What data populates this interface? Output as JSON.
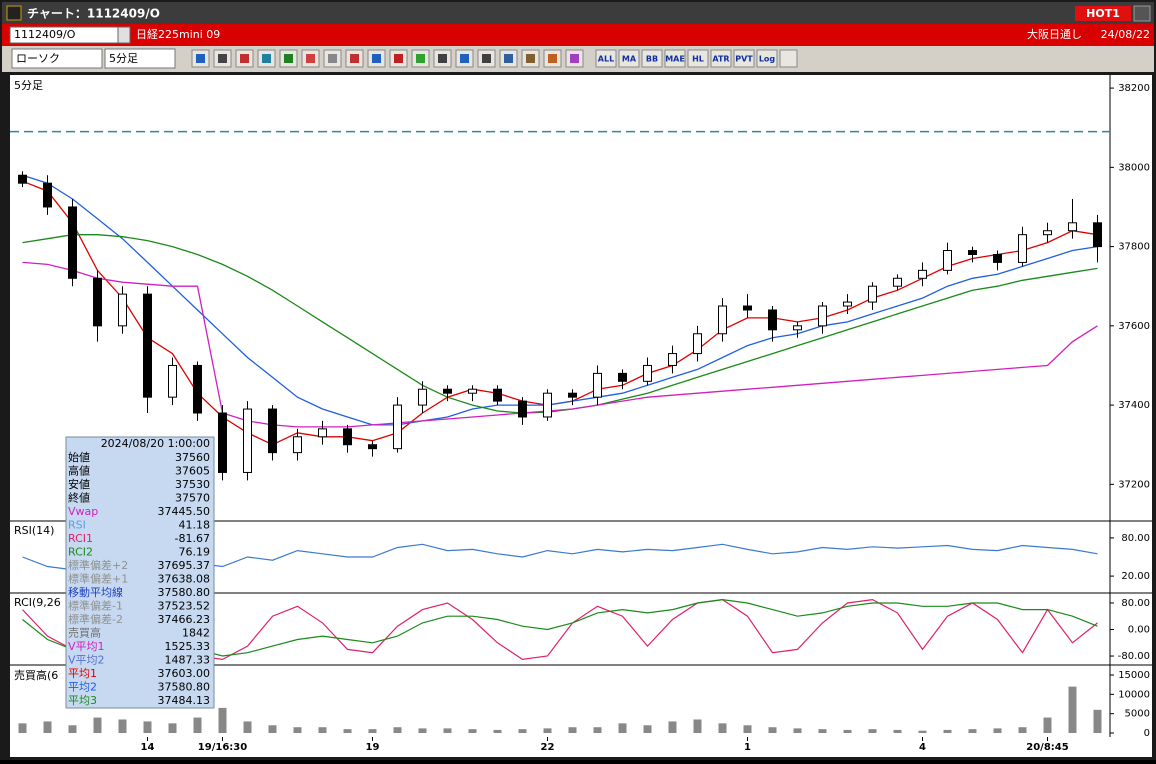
{
  "window": {
    "title": "チャート：1112409/O",
    "hot": "HOT1",
    "symbol": "1112409/O",
    "instrument": "日経225mini 09",
    "session": "大阪日通し",
    "date": "24/08/22"
  },
  "toolbar": {
    "chart_type": "ローソク",
    "interval": "5分足",
    "labels": [
      "ALL",
      "MA",
      "BB",
      "MAE",
      "HL",
      "ATR",
      "PVT",
      "Log"
    ]
  },
  "chart_data": {
    "type": "candlestick",
    "panel_label": "5分足",
    "open": [
      37980,
      37960,
      37900,
      37720,
      37600,
      37680,
      37420,
      37500,
      37380,
      37230,
      37390,
      37280,
      37320,
      37340,
      37300,
      37290,
      37400,
      37440,
      37430,
      37440,
      37410,
      37370,
      37430,
      37420,
      37480,
      37460,
      37500,
      37530,
      37580,
      37650,
      37640,
      37590,
      37600,
      37650,
      37660,
      37700,
      37720,
      37740,
      37790,
      37780,
      37760,
      37830,
      37840,
      37860
    ],
    "high": [
      37990,
      37980,
      37920,
      37740,
      37700,
      37700,
      37520,
      37510,
      37400,
      37410,
      37400,
      37340,
      37360,
      37350,
      37310,
      37420,
      37460,
      37450,
      37450,
      37450,
      37420,
      37440,
      37440,
      37500,
      37490,
      37520,
      37550,
      37600,
      37670,
      37680,
      37650,
      37610,
      37660,
      37680,
      37710,
      37730,
      37760,
      37810,
      37800,
      37790,
      37850,
      37860,
      37920,
      37880
    ],
    "low": [
      37950,
      37880,
      37700,
      37560,
      37580,
      37380,
      37400,
      37360,
      37210,
      37210,
      37260,
      37260,
      37300,
      37280,
      37270,
      37280,
      37380,
      37410,
      37410,
      37400,
      37350,
      37360,
      37400,
      37400,
      37440,
      37450,
      37480,
      37510,
      37560,
      37620,
      37560,
      37570,
      37580,
      37630,
      37640,
      37690,
      37700,
      37730,
      37760,
      37740,
      37750,
      37810,
      37820,
      37760
    ],
    "close": [
      37960,
      37900,
      37720,
      37600,
      37680,
      37420,
      37500,
      37380,
      37230,
      37390,
      37280,
      37320,
      37340,
      37300,
      37290,
      37400,
      37440,
      37430,
      37440,
      37410,
      37370,
      37430,
      37420,
      37480,
      37460,
      37500,
      37530,
      37580,
      37650,
      37640,
      37590,
      37600,
      37650,
      37660,
      37700,
      37720,
      37740,
      37790,
      37780,
      37760,
      37830,
      37840,
      37860,
      37800
    ],
    "candle_up_color": "#ffffff",
    "candle_down_color": "#000000",
    "series": [
      {
        "color": "#e00000",
        "values": [
          37965,
          37940,
          37860,
          37740,
          37670,
          37570,
          37530,
          37430,
          37370,
          37330,
          37300,
          37330,
          37320,
          37320,
          37310,
          37330,
          37380,
          37420,
          37440,
          37430,
          37410,
          37400,
          37410,
          37440,
          37450,
          37480,
          37500,
          37540,
          37590,
          37620,
          37620,
          37610,
          37620,
          37640,
          37670,
          37690,
          37720,
          37750,
          37770,
          37780,
          37790,
          37810,
          37840,
          37830
        ]
      },
      {
        "color": "#1f5fe0",
        "values": [
          37980,
          37960,
          37920,
          37870,
          37820,
          37760,
          37700,
          37640,
          37580,
          37520,
          37470,
          37420,
          37390,
          37370,
          37350,
          37350,
          37360,
          37370,
          37390,
          37400,
          37400,
          37400,
          37410,
          37420,
          37430,
          37450,
          37470,
          37490,
          37520,
          37550,
          37570,
          37580,
          37600,
          37610,
          37630,
          37650,
          37670,
          37700,
          37720,
          37730,
          37750,
          37770,
          37790,
          37800
        ]
      },
      {
        "color": "#1a8a1a",
        "values": [
          37810,
          37820,
          37830,
          37830,
          37825,
          37815,
          37800,
          37780,
          37755,
          37725,
          37690,
          37650,
          37610,
          37570,
          37530,
          37490,
          37450,
          37420,
          37400,
          37385,
          37380,
          37382,
          37390,
          37400,
          37415,
          37430,
          37450,
          37470,
          37490,
          37510,
          37530,
          37550,
          37570,
          37590,
          37610,
          37630,
          37650,
          37670,
          37690,
          37700,
          37715,
          37725,
          37735,
          37745
        ]
      },
      {
        "color": "#d020c0",
        "values": [
          37760,
          37755,
          37740,
          37720,
          37710,
          37705,
          37700,
          37700,
          37380,
          37360,
          37350,
          37345,
          37345,
          37345,
          37350,
          37355,
          37360,
          37365,
          37370,
          37375,
          37380,
          37385,
          37390,
          37400,
          37410,
          37420,
          37425,
          37430,
          37435,
          37440,
          37445,
          37450,
          37455,
          37460,
          37465,
          37470,
          37475,
          37480,
          37485,
          37490,
          37495,
          37500,
          37560,
          37600
        ]
      }
    ],
    "reference_line": 38090,
    "reference_color": "#2a8a9a",
    "ylim": [
      37110,
      38233
    ],
    "yticks": [
      37200,
      37400,
      37600,
      37800,
      38000,
      38200
    ],
    "xticks": [
      {
        "value": 5,
        "label": "14"
      },
      {
        "value": 8,
        "label": "19/16:30"
      },
      {
        "value": 14,
        "label": "19"
      },
      {
        "value": 21,
        "label": "22"
      },
      {
        "value": 29,
        "label": "1"
      },
      {
        "value": 36,
        "label": "4"
      },
      {
        "value": 41,
        "label": "20/8:45"
      }
    ],
    "rsi": {
      "label": "RSI(14)",
      "color": "#3a7ad0",
      "ylim": [
        -5,
        105
      ],
      "yticks": [
        {
          "value": 80,
          "label": "80.00"
        },
        {
          "value": 20,
          "label": "20.00"
        }
      ],
      "values": [
        50,
        35,
        30,
        45,
        40,
        30,
        45,
        40,
        35,
        50,
        45,
        60,
        55,
        50,
        50,
        65,
        70,
        60,
        62,
        55,
        50,
        60,
        55,
        62,
        58,
        62,
        60,
        65,
        70,
        62,
        55,
        58,
        65,
        62,
        66,
        64,
        66,
        68,
        62,
        60,
        68,
        65,
        62,
        55
      ]
    },
    "rci": {
      "label": "RCI(9,26",
      "ylim": [
        -104,
        107
      ],
      "yticks": [
        {
          "value": 80,
          "label": "80.00"
        },
        {
          "value": 0,
          "label": "0.00"
        },
        {
          "value": -80,
          "label": "-80.00"
        }
      ],
      "series": [
        {
          "color": "#e0206a",
          "values": [
            60,
            -20,
            -60,
            -70,
            20,
            60,
            -40,
            -80,
            -90,
            -50,
            40,
            70,
            20,
            -60,
            -70,
            10,
            60,
            80,
            30,
            -40,
            -90,
            -80,
            20,
            70,
            40,
            -50,
            30,
            80,
            90,
            40,
            -70,
            -60,
            20,
            80,
            90,
            50,
            -60,
            40,
            80,
            30,
            -70,
            60,
            -40,
            20
          ]
        },
        {
          "color": "#1a8a1a",
          "values": [
            30,
            -30,
            -60,
            -80,
            -60,
            -40,
            -50,
            -60,
            -80,
            -70,
            -50,
            -30,
            -20,
            -30,
            -40,
            -20,
            20,
            40,
            40,
            30,
            10,
            0,
            20,
            50,
            60,
            50,
            60,
            80,
            90,
            80,
            60,
            40,
            50,
            70,
            80,
            80,
            70,
            70,
            80,
            80,
            60,
            60,
            40,
            10
          ]
        }
      ]
    },
    "volume": {
      "label": "売買高(6",
      "color": "#888888",
      "ylim": [
        -1030,
        17330
      ],
      "yticks": [
        15000,
        10000,
        5000,
        0
      ],
      "values": [
        2500,
        3000,
        2000,
        4000,
        3500,
        3000,
        2500,
        4000,
        6500,
        3000,
        2000,
        1500,
        1500,
        1000,
        1000,
        1500,
        1200,
        1200,
        1000,
        800,
        1000,
        1200,
        1500,
        1500,
        2500,
        2000,
        3000,
        3500,
        2500,
        2000,
        1500,
        1200,
        1000,
        800,
        1000,
        800,
        600,
        800,
        1000,
        1200,
        1500,
        4000,
        12000,
        6000
      ]
    }
  },
  "info": {
    "date": "2024/08/20 1:00:00",
    "rows": [
      {
        "label": "始値",
        "value": "37560",
        "color": "#000000"
      },
      {
        "label": "高値",
        "value": "37605",
        "color": "#000000"
      },
      {
        "label": "安値",
        "value": "37530",
        "color": "#000000"
      },
      {
        "label": "終値",
        "value": "37570",
        "color": "#000000"
      },
      {
        "label": "Vwap",
        "value": "37445.50",
        "color": "#d020c0"
      },
      {
        "label": "RSI",
        "value": "41.18",
        "color": "#5aa0e0"
      },
      {
        "label": "RCI1",
        "value": "-81.67",
        "color": "#e0206a"
      },
      {
        "label": "RCI2",
        "value": "76.19",
        "color": "#1a8a1a"
      },
      {
        "label": "標準偏差+2",
        "value": "37695.37",
        "color": "#909090"
      },
      {
        "label": "標準偏差+1",
        "value": "37638.08",
        "color": "#909090"
      },
      {
        "label": "移動平均線",
        "value": "37580.80",
        "color": "#1f3fc0"
      },
      {
        "label": "標準偏差-1",
        "value": "37523.52",
        "color": "#909090"
      },
      {
        "label": "標準偏差-2",
        "value": "37466.23",
        "color": "#909090"
      },
      {
        "label": "売買高",
        "value": "1842",
        "color": "#707070"
      },
      {
        "label": "V平均1",
        "value": "1525.33",
        "color": "#d020c0"
      },
      {
        "label": "V平均2",
        "value": "1487.33",
        "color": "#5a70d0"
      },
      {
        "label": "平均1",
        "value": "37603.00",
        "color": "#e00000"
      },
      {
        "label": "平均2",
        "value": "37580.80",
        "color": "#1f5fe0"
      },
      {
        "label": "平均3",
        "value": "37484.13",
        "color": "#1a8a1a"
      }
    ]
  }
}
